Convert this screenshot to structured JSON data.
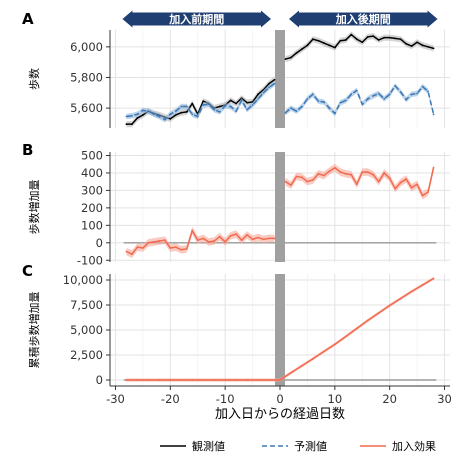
{
  "chart_data": {
    "type": "line",
    "xlabel": "加入日からの経過日数",
    "x_ticks": [
      -30,
      -20,
      -10,
      0,
      10,
      20,
      30
    ],
    "xlim": [
      -31,
      31
    ],
    "period_labels": {
      "before": "加入前期間",
      "after": "加入後期間"
    },
    "colors": {
      "observed": "#000000",
      "predicted": "#3a78b5",
      "predicted_band": "#8fb6dc",
      "effect": "#f26a4f",
      "effect_band": "#f7a999",
      "divider": "#a0a0a0",
      "period_bar": "#1f3f73",
      "zero_line": "#9a9a9a"
    },
    "legend": [
      {
        "key": "observed",
        "label": "観測値",
        "style": "solid"
      },
      {
        "key": "predicted",
        "label": "予測値",
        "style": "dashed"
      },
      {
        "key": "effect",
        "label": "加入効果",
        "style": "solid"
      }
    ],
    "panels": [
      {
        "letter": "A",
        "ylabel": "歩数",
        "ylim": [
          5470,
          6110
        ],
        "y_ticks": [
          5600,
          5800,
          6000
        ],
        "y_tick_labels": [
          "5,600",
          "5,800",
          "6,000"
        ],
        "series": [
          {
            "key": "observed",
            "x": [
              -28,
              -27,
              -26,
              -25,
              -24,
              -23,
              -22,
              -21,
              -20,
              -19,
              -18,
              -17,
              -16,
              -15,
              -14,
              -13,
              -12,
              -11,
              -10,
              -9,
              -8,
              -7,
              -6,
              -5,
              -4,
              -3,
              -2,
              -1,
              1,
              2,
              3,
              4,
              5,
              6,
              7,
              8,
              9,
              10,
              11,
              12,
              13,
              14,
              15,
              16,
              17,
              18,
              19,
              20,
              21,
              22,
              23,
              24,
              25,
              26,
              27,
              28
            ],
            "y": [
              5495,
              5495,
              5535,
              5555,
              5580,
              5565,
              5555,
              5540,
              5530,
              5555,
              5570,
              5575,
              5630,
              5560,
              5645,
              5630,
              5600,
              5610,
              5620,
              5650,
              5630,
              5665,
              5635,
              5640,
              5690,
              5720,
              5760,
              5785,
              5920,
              5930,
              5960,
              5985,
              6010,
              6050,
              6040,
              6025,
              6010,
              5995,
              6040,
              6045,
              6080,
              6050,
              6030,
              6065,
              6070,
              6045,
              6060,
              6060,
              6055,
              6050,
              6020,
              6005,
              6030,
              6010,
              6000,
              5990
            ],
            "band": 20
          },
          {
            "key": "predicted",
            "x": [
              -28,
              -27,
              -26,
              -25,
              -24,
              -23,
              -22,
              -21,
              -20,
              -19,
              -18,
              -17,
              -16,
              -15,
              -14,
              -13,
              -12,
              -11,
              -10,
              -9,
              -8,
              -7,
              -6,
              -5,
              -4,
              -3,
              -2,
              -1,
              1,
              2,
              3,
              4,
              5,
              6,
              7,
              8,
              9,
              10,
              11,
              12,
              13,
              14,
              15,
              16,
              17,
              18,
              19,
              20,
              21,
              22,
              23,
              24,
              25,
              26,
              27,
              28
            ],
            "y": [
              5545,
              5550,
              5560,
              5585,
              5580,
              5560,
              5545,
              5525,
              5560,
              5580,
              5610,
              5610,
              5560,
              5545,
              5620,
              5625,
              5590,
              5575,
              5615,
              5610,
              5580,
              5650,
              5590,
              5620,
              5660,
              5700,
              5735,
              5760,
              5570,
              5600,
              5580,
              5610,
              5660,
              5690,
              5645,
              5640,
              5600,
              5565,
              5635,
              5650,
              5690,
              5715,
              5625,
              5660,
              5680,
              5695,
              5660,
              5690,
              5745,
              5705,
              5655,
              5690,
              5695,
              5740,
              5710,
              5560
            ],
            "band": 18
          }
        ]
      },
      {
        "letter": "B",
        "ylabel": "歩数増加量",
        "ylim": [
          -110,
          520
        ],
        "y_ticks": [
          -100,
          0,
          100,
          200,
          300,
          400,
          500
        ],
        "y_tick_labels": [
          "-100",
          "0",
          "100",
          "200",
          "300",
          "400",
          "500"
        ],
        "series": [
          {
            "key": "effect",
            "x": [
              -28,
              -27,
              -26,
              -25,
              -24,
              -23,
              -22,
              -21,
              -20,
              -19,
              -18,
              -17,
              -16,
              -15,
              -14,
              -13,
              -12,
              -11,
              -10,
              -9,
              -8,
              -7,
              -6,
              -5,
              -4,
              -3,
              -2,
              -1,
              1,
              2,
              3,
              4,
              5,
              6,
              7,
              8,
              9,
              10,
              11,
              12,
              13,
              14,
              15,
              16,
              17,
              18,
              19,
              20,
              21,
              22,
              23,
              24,
              25,
              26,
              27,
              28
            ],
            "y": [
              -50,
              -65,
              -25,
              -30,
              0,
              5,
              10,
              15,
              -30,
              -25,
              -40,
              -35,
              70,
              15,
              25,
              5,
              10,
              35,
              5,
              40,
              50,
              15,
              45,
              20,
              30,
              20,
              25,
              25,
              350,
              330,
              380,
              375,
              350,
              360,
              395,
              385,
              410,
              430,
              405,
              395,
              390,
              335,
              405,
              405,
              390,
              350,
              400,
              370,
              310,
              345,
              365,
              315,
              335,
              270,
              290,
              430
            ],
            "band": 22
          }
        ]
      },
      {
        "letter": "C",
        "ylabel": "累積歩数増加量",
        "ylim": [
          -600,
          10600
        ],
        "y_ticks": [
          0,
          2500,
          5000,
          7500,
          10000
        ],
        "y_tick_labels": [
          "0",
          "2,500",
          "5,000",
          "7,500",
          "10,000"
        ],
        "series": [
          {
            "key": "effect",
            "x": [
              -28,
              -26,
              -24,
              -22,
              -20,
              -18,
              -16,
              -14,
              -12,
              -10,
              -8,
              -6,
              -4,
              -2,
              0,
              2,
              4,
              6,
              8,
              10,
              12,
              14,
              16,
              18,
              20,
              22,
              24,
              26,
              28
            ],
            "y": [
              0,
              0,
              0,
              0,
              0,
              0,
              0,
              0,
              0,
              0,
              0,
              0,
              0,
              0,
              0,
              720,
              1420,
              2120,
              2850,
              3560,
              4350,
              5150,
              5950,
              6700,
              7450,
              8150,
              8850,
              9500,
              10150
            ],
            "band": 160
          }
        ]
      }
    ]
  }
}
